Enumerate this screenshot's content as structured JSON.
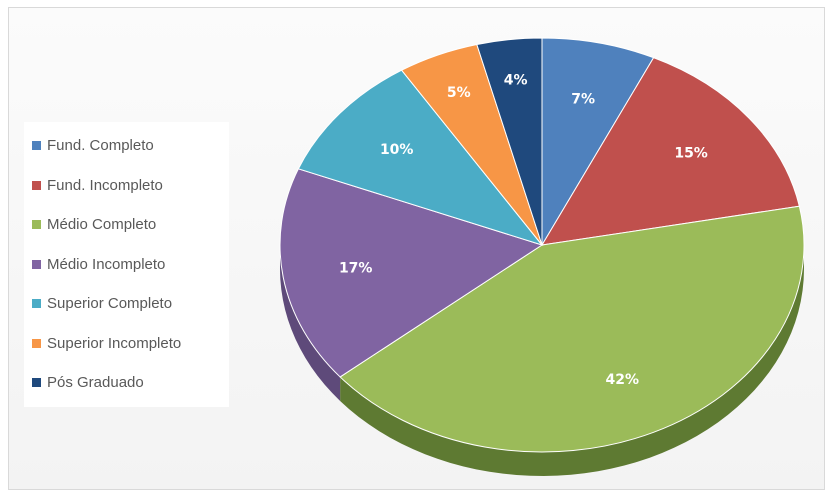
{
  "chart_data": {
    "type": "pie",
    "title": "",
    "categories": [
      "Fund. Completo",
      "Fund. Incompleto",
      "Médio Completo",
      "Médio Incompleto",
      "Superior Completo",
      "Superior Incompleto",
      "Pós Graduado"
    ],
    "values": [
      7,
      15,
      42,
      17,
      10,
      5,
      4
    ],
    "labels": [
      "7%",
      "15%",
      "42%",
      "17%",
      "10%",
      "5%",
      "4%"
    ],
    "colors": [
      "#4f81bd",
      "#c0504d",
      "#9bbb59",
      "#8064a2",
      "#4bacc6",
      "#f79646",
      "#1f497d"
    ],
    "side_colors": [
      "#3a6190",
      "#8f3b39",
      "#5e7a32",
      "#5e4a7a",
      "#368294",
      "#b86f33",
      "#142f52"
    ],
    "legend_position": "left",
    "style": "3d-pie"
  }
}
